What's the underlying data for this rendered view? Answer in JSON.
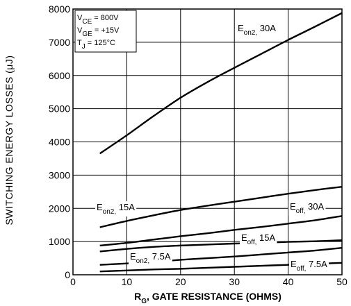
{
  "chart_data": {
    "type": "line",
    "xlabel": {
      "main": "R",
      "sub": "G",
      "rest": ", GATE  RESISTANCE (OHMS)"
    },
    "ylabel": "SWITCHING  ENERGY  LOSSES (μJ)",
    "xlim": [
      0,
      50
    ],
    "ylim": [
      0,
      8000
    ],
    "xticks": [
      0,
      10,
      20,
      30,
      40,
      50
    ],
    "yticks": [
      0,
      1000,
      2000,
      3000,
      4000,
      5000,
      6000,
      7000,
      8000
    ],
    "grid": true,
    "conditions": [
      {
        "main": "V",
        "sub": "CE",
        "rest": " =  800V"
      },
      {
        "main": "V",
        "sub": "GE",
        "rest": " = +15V"
      },
      {
        "main": "T",
        "sub": "J",
        "rest": " = 125°C"
      }
    ],
    "series": [
      {
        "name": "E_on2, 30A",
        "label_main": "E",
        "label_sub": "on2,",
        "label_rest": " 30A",
        "x": [
          5,
          10,
          15,
          20,
          25,
          30,
          35,
          40,
          45,
          50
        ],
        "y": [
          3650,
          4200,
          4780,
          5330,
          5800,
          6230,
          6650,
          7070,
          7470,
          7880
        ]
      },
      {
        "name": "E_off, 30A",
        "label_main": "E",
        "label_sub": "off,",
        "label_rest": " 30A",
        "x": [
          5,
          10,
          15,
          20,
          25,
          30,
          35,
          40,
          45,
          50
        ],
        "y": [
          1430,
          1620,
          1790,
          1950,
          2080,
          2200,
          2320,
          2440,
          2550,
          2650
        ]
      },
      {
        "name": "E_on2, 15A",
        "label_main": "E",
        "label_sub": "on2,",
        "label_rest": " 15A",
        "x": [
          5,
          10,
          15,
          20,
          25,
          30,
          35,
          40,
          45,
          50
        ],
        "y": [
          880,
          960,
          1060,
          1160,
          1250,
          1350,
          1440,
          1540,
          1640,
          1770
        ]
      },
      {
        "name": "E_off, 15A",
        "label_main": "E",
        "label_sub": "off,",
        "label_rest": " 15A",
        "x": [
          5,
          10,
          15,
          20,
          25,
          30,
          35,
          40,
          45,
          50
        ],
        "y": [
          700,
          780,
          840,
          880,
          910,
          940,
          960,
          990,
          1010,
          1040
        ]
      },
      {
        "name": "E_on2, 7.5A",
        "label_main": "E",
        "label_sub": "on2,",
        "label_rest": " 7.5A",
        "x": [
          5,
          10,
          15,
          20,
          25,
          30,
          35,
          40,
          45,
          50
        ],
        "y": [
          300,
          340,
          390,
          450,
          500,
          550,
          610,
          670,
          730,
          810
        ]
      },
      {
        "name": "E_off, 7.5A",
        "label_main": "E",
        "label_sub": "off,",
        "label_rest": " 7.5A",
        "x": [
          5,
          10,
          15,
          20,
          25,
          30,
          35,
          40,
          45,
          50
        ],
        "y": [
          100,
          130,
          160,
          180,
          210,
          240,
          270,
          300,
          330,
          360
        ]
      }
    ]
  }
}
